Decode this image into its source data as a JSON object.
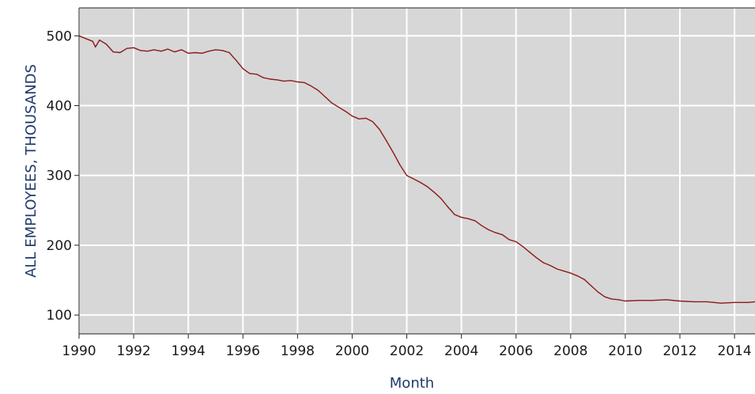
{
  "chart_data": {
    "type": "line",
    "xlabel": "Month",
    "ylabel": "ALL EMPLOYEES, THOUSANDS",
    "xlim": [
      1990,
      2014.75
    ],
    "ylim": [
      73,
      540
    ],
    "x_ticks": [
      1990,
      1992,
      1994,
      1996,
      1998,
      2000,
      2002,
      2004,
      2006,
      2008,
      2010,
      2012,
      2014
    ],
    "x_tick_labels": [
      "1990",
      "1992",
      "1994",
      "1996",
      "1998",
      "2000",
      "2002",
      "2004",
      "2006",
      "2008",
      "2010",
      "2012",
      "2014"
    ],
    "y_ticks": [
      100,
      200,
      300,
      400,
      500
    ],
    "y_tick_labels": [
      "100",
      "200",
      "300",
      "400",
      "500"
    ],
    "grid": true,
    "background": "#d7d7d7",
    "series": [
      {
        "color": "#8b1a1a",
        "points": [
          [
            1990.0,
            500
          ],
          [
            1990.25,
            496
          ],
          [
            1990.5,
            492
          ],
          [
            1990.6,
            484
          ],
          [
            1990.75,
            494
          ],
          [
            1991.0,
            488
          ],
          [
            1991.25,
            477
          ],
          [
            1991.5,
            476
          ],
          [
            1991.75,
            482
          ],
          [
            1992.0,
            483
          ],
          [
            1992.25,
            479
          ],
          [
            1992.5,
            478
          ],
          [
            1992.75,
            480
          ],
          [
            1993.0,
            478
          ],
          [
            1993.25,
            481
          ],
          [
            1993.5,
            477
          ],
          [
            1993.75,
            480
          ],
          [
            1994.0,
            475
          ],
          [
            1994.25,
            476
          ],
          [
            1994.5,
            475
          ],
          [
            1994.75,
            478
          ],
          [
            1995.0,
            480
          ],
          [
            1995.25,
            479
          ],
          [
            1995.5,
            476
          ],
          [
            1995.75,
            465
          ],
          [
            1996.0,
            453
          ],
          [
            1996.25,
            446
          ],
          [
            1996.5,
            445
          ],
          [
            1996.75,
            440
          ],
          [
            1997.0,
            438
          ],
          [
            1997.25,
            437
          ],
          [
            1997.5,
            435
          ],
          [
            1997.75,
            436
          ],
          [
            1998.0,
            434
          ],
          [
            1998.25,
            433
          ],
          [
            1998.5,
            428
          ],
          [
            1998.75,
            422
          ],
          [
            1999.0,
            413
          ],
          [
            1999.25,
            404
          ],
          [
            1999.5,
            398
          ],
          [
            1999.75,
            392
          ],
          [
            2000.0,
            385
          ],
          [
            2000.25,
            381
          ],
          [
            2000.5,
            382
          ],
          [
            2000.75,
            377
          ],
          [
            2001.0,
            366
          ],
          [
            2001.25,
            350
          ],
          [
            2001.5,
            333
          ],
          [
            2001.75,
            315
          ],
          [
            2002.0,
            300
          ],
          [
            2002.25,
            295
          ],
          [
            2002.5,
            290
          ],
          [
            2002.75,
            284
          ],
          [
            2003.0,
            276
          ],
          [
            2003.25,
            267
          ],
          [
            2003.5,
            255
          ],
          [
            2003.75,
            244
          ],
          [
            2004.0,
            240
          ],
          [
            2004.25,
            238
          ],
          [
            2004.5,
            235
          ],
          [
            2004.75,
            228
          ],
          [
            2005.0,
            222
          ],
          [
            2005.25,
            218
          ],
          [
            2005.5,
            215
          ],
          [
            2005.75,
            208
          ],
          [
            2006.0,
            205
          ],
          [
            2006.25,
            198
          ],
          [
            2006.5,
            190
          ],
          [
            2006.75,
            182
          ],
          [
            2007.0,
            175
          ],
          [
            2007.25,
            171
          ],
          [
            2007.5,
            166
          ],
          [
            2007.75,
            163
          ],
          [
            2008.0,
            160
          ],
          [
            2008.25,
            156
          ],
          [
            2008.5,
            151
          ],
          [
            2008.75,
            142
          ],
          [
            2009.0,
            133
          ],
          [
            2009.25,
            126
          ],
          [
            2009.5,
            123
          ],
          [
            2009.75,
            122
          ],
          [
            2010.0,
            120
          ],
          [
            2010.5,
            121
          ],
          [
            2011.0,
            121
          ],
          [
            2011.5,
            122
          ],
          [
            2012.0,
            120
          ],
          [
            2012.5,
            119
          ],
          [
            2013.0,
            119
          ],
          [
            2013.5,
            117
          ],
          [
            2014.0,
            118
          ],
          [
            2014.5,
            118
          ],
          [
            2014.75,
            119
          ]
        ]
      }
    ]
  }
}
